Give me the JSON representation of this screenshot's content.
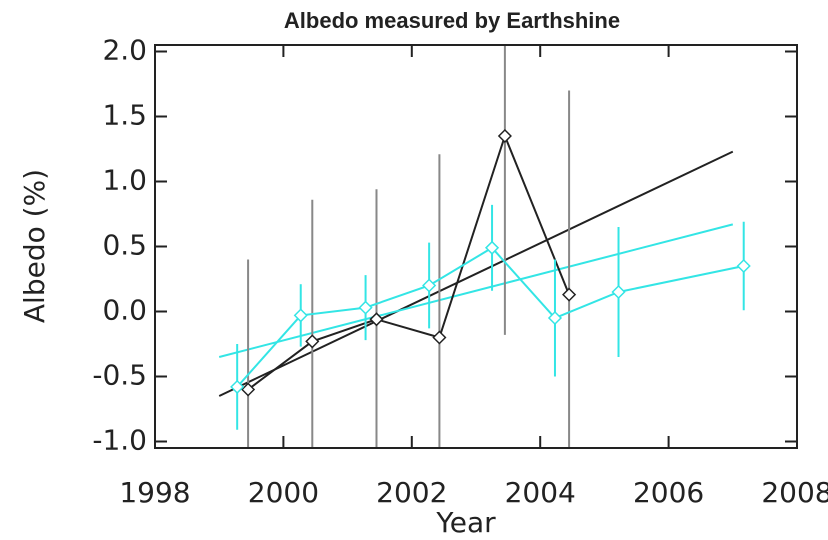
{
  "chart_data": {
    "type": "line",
    "title": "Albedo measured by Earthshine",
    "x_label": "Year",
    "y_label": "Albedo  (%)",
    "xlim": [
      1998,
      2008
    ],
    "ylim": [
      -1.05,
      2.05
    ],
    "xticks": [
      1998,
      2000,
      2002,
      2004,
      2006,
      2008
    ],
    "yticks": [
      {
        "value": -1,
        "label": "-1.0"
      },
      -0.5,
      {
        "value": 0,
        "label": "0.0"
      },
      0.5,
      {
        "value": 1,
        "label": "1.0"
      },
      1.5,
      {
        "value": 2,
        "label": "2.0"
      }
    ],
    "series": [
      {
        "color": "#222222",
        "error_color": "#888888",
        "x": [
          1999.45,
          2000.45,
          2001.45,
          2002.43,
          2003.45,
          2004.45
        ],
        "values": [
          -0.6,
          -0.23,
          -0.06,
          -0.2,
          1.35,
          0.13
        ],
        "errors": [
          1.0,
          1.09,
          1.0,
          1.41,
          1.53,
          1.57
        ]
      },
      {
        "color": "#33e5e5",
        "error_color": "#33e5e5",
        "x": [
          1999.28,
          2000.27,
          2001.28,
          2002.27,
          2003.25,
          2004.23,
          2005.22,
          2007.17
        ],
        "values": [
          -0.58,
          -0.03,
          0.03,
          0.2,
          0.49,
          -0.05,
          0.15,
          0.35
        ],
        "errors": [
          0.33,
          0.24,
          0.25,
          0.33,
          0.33,
          0.45,
          0.5,
          0.34
        ]
      }
    ],
    "fits": [
      {
        "color": "#222222",
        "x": [
          1999.0,
          2007.0
        ],
        "values": [
          -0.65,
          1.23
        ]
      },
      {
        "color": "#33e5e5",
        "x": [
          1999.0,
          2007.0
        ],
        "values": [
          -0.35,
          0.67
        ]
      }
    ]
  }
}
